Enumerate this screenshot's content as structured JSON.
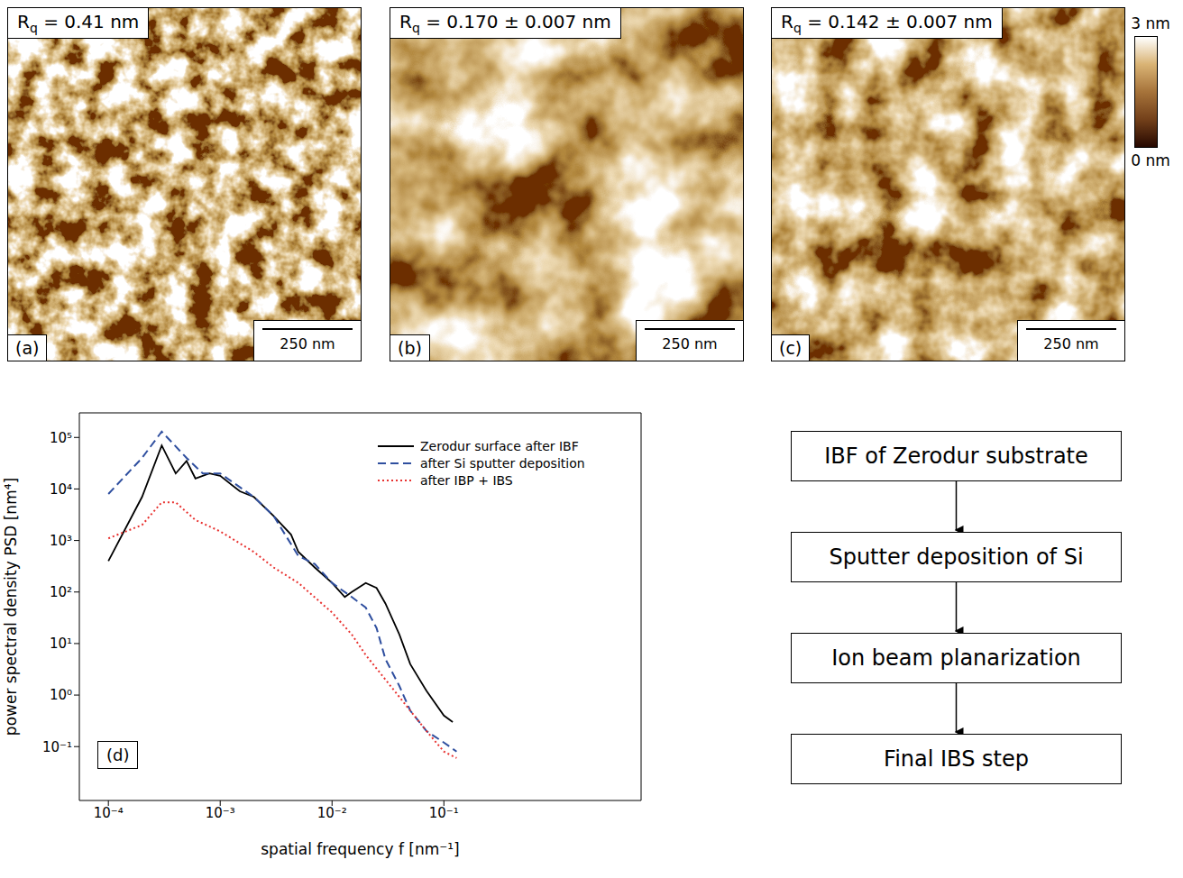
{
  "panels": [
    {
      "label": "(a)",
      "rq": "Rq = 0.41 nm",
      "scale_bar": "250 nm"
    },
    {
      "label": "(b)",
      "rq": "Rq = 0.170 ± 0.007 nm",
      "scale_bar": "250 nm"
    },
    {
      "label": "(c)",
      "rq": "Rq = 0.142 ± 0.007 nm",
      "scale_bar": "250 nm"
    }
  ],
  "colorbar": {
    "range": [
      0,
      3
    ],
    "ticks": [
      {
        "value": 0,
        "label": "0 nm"
      },
      {
        "value": 3,
        "label": "3 nm"
      }
    ]
  },
  "chart_data": {
    "type": "line",
    "panel_label": "(d)",
    "x_label": "spatial frequency f [nm⁻¹]",
    "y_label": "power spectral density PSD [nm⁴]",
    "log": true,
    "grid": false,
    "legend": "upper right",
    "xlim": [
      5.5e-05,
      5.8
    ],
    "ylim": [
      0.009,
      300000
    ],
    "xticks": [
      {
        "value": 0.0001,
        "label": "10⁻⁴"
      },
      {
        "value": 0.001,
        "label": "10⁻³"
      },
      {
        "value": 0.01,
        "label": "10⁻²"
      },
      {
        "value": 0.1,
        "label": "10⁻¹"
      }
    ],
    "yticks": [
      {
        "value": 0.1,
        "label": "10⁻¹"
      },
      {
        "value": 1,
        "label": "10⁰"
      },
      {
        "value": 10,
        "label": "10¹"
      },
      {
        "value": 100,
        "label": "10²"
      },
      {
        "value": 1000,
        "label": "10³"
      },
      {
        "value": 10000,
        "label": "10⁴"
      },
      {
        "value": 100000,
        "label": "10⁵"
      }
    ],
    "series": [
      {
        "name": "Zerodur surface after IBF",
        "color": "#000000",
        "line_style": "solid",
        "x": [
          0.0001,
          0.0002,
          0.0003,
          0.0004,
          0.0005,
          0.0006,
          0.0008,
          0.001,
          0.0015,
          0.002,
          0.003,
          0.0043,
          0.005,
          0.007,
          0.01,
          0.013,
          0.015,
          0.02,
          0.025,
          0.03,
          0.04,
          0.05,
          0.07,
          0.1,
          0.12
        ],
        "values": [
          400,
          7000,
          70000,
          20000,
          35000,
          16000,
          20000,
          18000,
          9000,
          7000,
          3000,
          1300,
          600,
          300,
          150,
          80,
          100,
          150,
          120,
          60,
          15,
          4,
          1.2,
          0.4,
          0.3
        ]
      },
      {
        "name": "after Si sputter deposition",
        "color": "#2f4f9f",
        "line_style": "dashed",
        "x": [
          0.0001,
          0.0002,
          0.0003,
          0.0005,
          0.0007,
          0.001,
          0.002,
          0.003,
          0.005,
          0.007,
          0.01,
          0.015,
          0.02,
          0.025,
          0.03,
          0.04,
          0.05,
          0.07,
          0.1,
          0.13
        ],
        "values": [
          8000,
          40000,
          130000,
          40000,
          20000,
          20000,
          7000,
          3000,
          500,
          350,
          150,
          80,
          50,
          20,
          5,
          1.5,
          0.5,
          0.2,
          0.12,
          0.08
        ]
      },
      {
        "name": "after IBP + IBS",
        "color": "#e8312f",
        "line_style": "dotted",
        "x": [
          0.0001,
          0.0002,
          0.0003,
          0.0004,
          0.0006,
          0.001,
          0.002,
          0.003,
          0.005,
          0.01,
          0.015,
          0.02,
          0.03,
          0.05,
          0.07,
          0.1,
          0.13
        ],
        "values": [
          1100,
          2000,
          5500,
          5500,
          2500,
          1500,
          600,
          300,
          150,
          40,
          15,
          6,
          2,
          0.5,
          0.2,
          0.08,
          0.06
        ]
      }
    ]
  },
  "flowchart": {
    "nodes": [
      {
        "label": "IBF of Zerodur substrate"
      },
      {
        "label": "Sputter deposition of Si"
      },
      {
        "label": "Ion beam planarization"
      },
      {
        "label": "Final IBS step"
      }
    ]
  }
}
